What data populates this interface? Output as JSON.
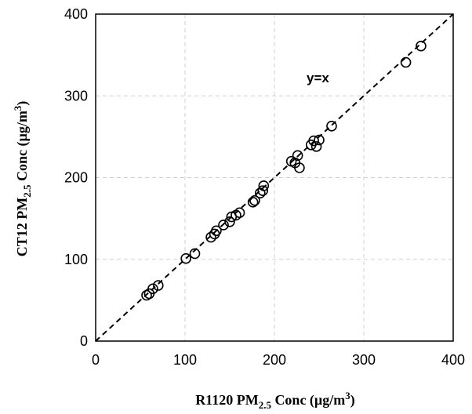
{
  "chart_data": {
    "type": "scatter",
    "title": "",
    "xlabel": {
      "prefix": "R1120 PM",
      "subscript": "2.5",
      "middle": " Conc (µg/m",
      "superscript": "3",
      "suffix": ")"
    },
    "ylabel": {
      "prefix": "CT12 PM",
      "subscript": "2.5",
      "middle": " Conc (µg/m",
      "superscript": "3",
      "suffix": ")"
    },
    "xlim": [
      0,
      400
    ],
    "ylim": [
      0,
      400
    ],
    "xticks": [
      0,
      100,
      200,
      300,
      400
    ],
    "yticks": [
      0,
      100,
      200,
      300,
      400
    ],
    "grid": true,
    "reference_line": {
      "label": "y=x",
      "slope": 1,
      "intercept": 0,
      "style": "dashed"
    },
    "series": [
      {
        "points": [
          [
            57,
            56
          ],
          [
            60,
            58
          ],
          [
            64,
            64
          ],
          [
            70,
            68
          ],
          [
            101,
            101
          ],
          [
            111,
            107
          ],
          [
            129,
            127
          ],
          [
            133,
            131
          ],
          [
            135,
            135
          ],
          [
            143,
            142
          ],
          [
            150,
            146
          ],
          [
            152,
            152
          ],
          [
            157,
            154
          ],
          [
            161,
            157
          ],
          [
            176,
            170
          ],
          [
            178,
            172
          ],
          [
            184,
            181
          ],
          [
            187,
            184
          ],
          [
            188,
            190
          ],
          [
            219,
            220
          ],
          [
            223,
            218
          ],
          [
            226,
            227
          ],
          [
            228,
            212
          ],
          [
            241,
            240
          ],
          [
            244,
            245
          ],
          [
            247,
            238
          ],
          [
            250,
            246
          ],
          [
            264,
            263
          ],
          [
            347,
            341
          ],
          [
            364,
            361
          ]
        ]
      }
    ]
  }
}
